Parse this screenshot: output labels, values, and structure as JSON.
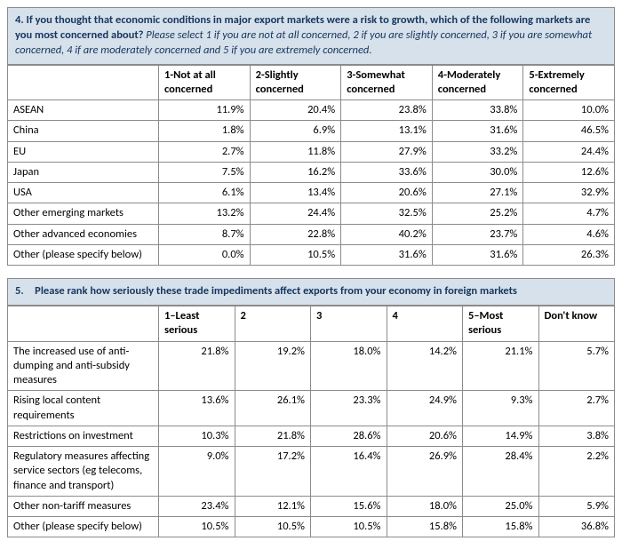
{
  "q4": {
    "header_bold": "4. If you thought that economic conditions in major export markets were a risk to growth, which of the following markets are you most concerned about?",
    "header_italic": " Please select 1 if you are not at all concerned, 2 if you are slightly concerned, 3 if you are somewhat concerned, 4 if are moderately concerned and 5 if you are extremely concerned.",
    "columns": [
      "1-Not at all concerned",
      "2-Slightly concerned",
      "3-Somewhat concerned",
      "4-Moderately concerned",
      "5-Extremely concerned"
    ],
    "rows": [
      {
        "label": "ASEAN",
        "values": [
          "11.9%",
          "20.4%",
          "23.8%",
          "33.8%",
          "10.0%"
        ]
      },
      {
        "label": "China",
        "values": [
          "1.8%",
          "6.9%",
          "13.1%",
          "31.6%",
          "46.5%"
        ]
      },
      {
        "label": "EU",
        "values": [
          "2.7%",
          "11.8%",
          "27.9%",
          "33.2%",
          "24.4%"
        ]
      },
      {
        "label": "Japan",
        "values": [
          "7.5%",
          "16.2%",
          "33.6%",
          "30.0%",
          "12.6%"
        ]
      },
      {
        "label": "USA",
        "values": [
          "6.1%",
          "13.4%",
          "20.6%",
          "27.1%",
          "32.9%"
        ]
      },
      {
        "label": "Other emerging markets",
        "values": [
          "13.2%",
          "24.4%",
          "32.5%",
          "25.2%",
          "4.7%"
        ]
      },
      {
        "label": "Other advanced economies",
        "values": [
          "8.7%",
          "22.8%",
          "40.2%",
          "23.7%",
          "4.6%"
        ]
      },
      {
        "label": "Other (please specify below)",
        "values": [
          "0.0%",
          "10.5%",
          "31.6%",
          "31.6%",
          "26.3%"
        ]
      }
    ]
  },
  "q5": {
    "header_bold": "5. Please rank how seriously these trade impediments affect exports from your economy in foreign markets",
    "columns": [
      "1–Least serious",
      "2",
      "3",
      "4",
      "5–Most serious",
      "Don't know"
    ],
    "rows": [
      {
        "label": "The increased use of anti-dumping and anti-subsidy measures",
        "values": [
          "21.8%",
          "19.2%",
          "18.0%",
          "14.2%",
          "21.1%",
          "5.7%"
        ]
      },
      {
        "label": "Rising local content requirements",
        "values": [
          "13.6%",
          "26.1%",
          "23.3%",
          "24.9%",
          "9.3%",
          "2.7%"
        ]
      },
      {
        "label": "Restrictions on investment",
        "values": [
          "10.3%",
          "21.8%",
          "28.6%",
          "20.6%",
          "14.9%",
          "3.8%"
        ]
      },
      {
        "label": "Regulatory measures affecting service sectors (eg telecoms, finance and transport)",
        "values": [
          "9.0%",
          "17.2%",
          "16.4%",
          "26.9%",
          "28.4%",
          "2.2%"
        ]
      },
      {
        "label": "Other non-tariff measures",
        "values": [
          "23.4%",
          "12.1%",
          "15.6%",
          "18.0%",
          "25.0%",
          "5.9%"
        ]
      },
      {
        "label": "Other (please specify below)",
        "values": [
          "10.5%",
          "10.5%",
          "10.5%",
          "15.8%",
          "15.8%",
          "36.8%"
        ]
      }
    ]
  },
  "style": {
    "header_bg": "#d6e1eb",
    "header_text": "#17365d",
    "border_color": "#8b8b8b",
    "font_family": "Calibri",
    "base_font_size_pt": 10
  }
}
